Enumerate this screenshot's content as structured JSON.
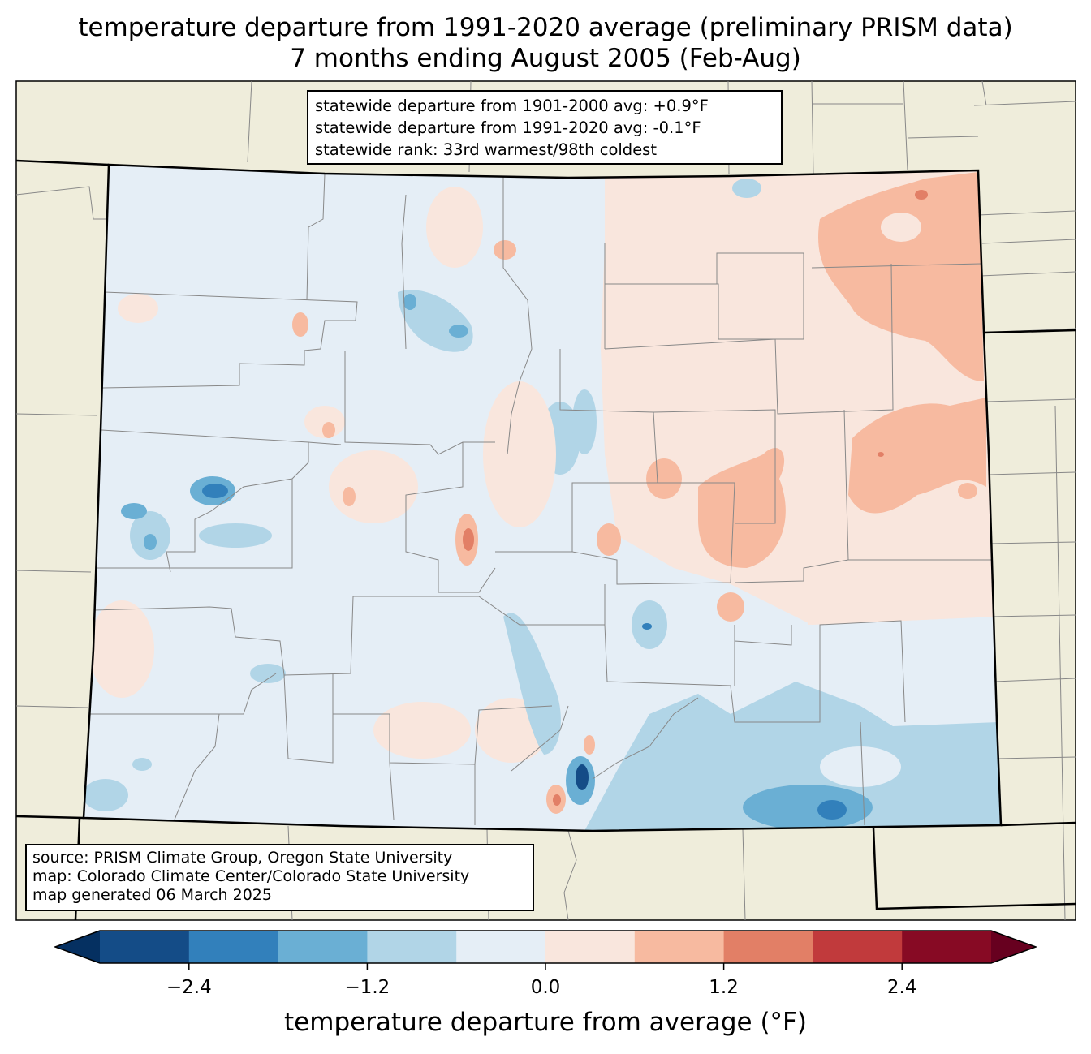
{
  "title": {
    "line1": "temperature departure from 1991-2020 average (preliminary PRISM data)",
    "line2": "7 months ending August 2005 (Feb-Aug)"
  },
  "stats": {
    "line1": "statewide departure from 1901-2000 avg: +0.9°F",
    "line2": "statewide departure from 1991-2020 avg: -0.1°F",
    "line3": "statewide rank: 33rd warmest/98th coldest"
  },
  "source": {
    "line1": "source: PRISM Climate Group, Oregon State University",
    "line2": "map: Colorado Climate Center/Colorado State University",
    "line3": "map generated 06 March 2025"
  },
  "colorbar": {
    "label": "temperature departure from average (°F)",
    "ticks": [
      "−2.4",
      "−1.2",
      "0.0",
      "1.2",
      "2.4"
    ],
    "levels": [
      -3.0,
      -2.4,
      -1.8,
      -1.2,
      -0.6,
      0.0,
      0.6,
      1.2,
      1.8,
      2.4,
      3.0
    ],
    "colors": [
      "#053061",
      "#144c87",
      "#3280bb",
      "#6aafd4",
      "#b1d5e7",
      "#e5eef6",
      "#f9e6dd",
      "#f7baa0",
      "#e27f66",
      "#c13a3c",
      "#870a24",
      "#67001f"
    ]
  },
  "palette": {
    "land": "#efeddb",
    "state_base": "#e5eef6",
    "border": "#000000",
    "county_line": "#888888"
  }
}
